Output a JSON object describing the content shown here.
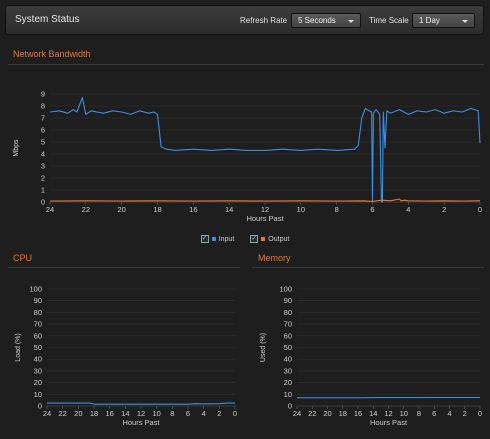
{
  "header": {
    "title": "System Status",
    "refresh_label": "Refresh Rate",
    "refresh_value": "5 Seconds",
    "timescale_label": "Time Scale",
    "timescale_value": "1 Day"
  },
  "colors": {
    "accent": "#e8772e",
    "input": "#3a8ee6",
    "output": "#e8772e",
    "cpu": "#3a8ee6",
    "memory": "#3a8ee6"
  },
  "legend": {
    "input_label": "Input",
    "output_label": "Output",
    "input_checked": true,
    "output_checked": true
  },
  "chart_data": [
    {
      "id": "bandwidth",
      "type": "line",
      "title": "Network Bandwidth",
      "xlabel": "Hours Past",
      "ylabel": "Mbps",
      "xlim": [
        24,
        0
      ],
      "ylim": [
        0,
        9
      ],
      "xticks": [
        24,
        22,
        20,
        18,
        16,
        14,
        12,
        10,
        8,
        6,
        4,
        2,
        0
      ],
      "yticks": [
        0,
        1,
        2,
        3,
        4,
        5,
        6,
        7,
        8,
        9
      ],
      "grid": true,
      "series": [
        {
          "name": "Input",
          "x": [
            24,
            23.5,
            23,
            22.7,
            22.5,
            22.2,
            22,
            21.7,
            21.4,
            21,
            20.5,
            20,
            19.5,
            19,
            18.5,
            18.2,
            18.0,
            17.8,
            17.5,
            17,
            16,
            15,
            14,
            13,
            12,
            11,
            10,
            9,
            8,
            7,
            6.8,
            6.6,
            6.4,
            6.2,
            6.05,
            6.0,
            5.95,
            5.8,
            5.7,
            5.6,
            5.5,
            5.45,
            5.4,
            5.3,
            5.2,
            5.0,
            4.5,
            4.0,
            3.5,
            3.0,
            2.5,
            2.0,
            1.5,
            1.0,
            0.5,
            0.1,
            0
          ],
          "y": [
            7.5,
            7.6,
            7.4,
            7.7,
            7.5,
            8.7,
            7.3,
            7.6,
            7.5,
            7.4,
            7.6,
            7.5,
            7.3,
            7.6,
            7.4,
            7.5,
            7.3,
            4.6,
            4.4,
            4.3,
            4.4,
            4.3,
            4.4,
            4.3,
            4.3,
            4.4,
            4.3,
            4.4,
            4.3,
            4.4,
            4.7,
            7.0,
            7.8,
            7.6,
            7.5,
            0,
            7.4,
            7.7,
            7.5,
            7.3,
            0,
            0,
            7.5,
            4.5,
            7.6,
            7.4,
            7.7,
            7.3,
            7.6,
            7.5,
            7.7,
            7.4,
            7.6,
            7.5,
            7.8,
            7.6,
            4.9
          ]
        },
        {
          "name": "Output",
          "x": [
            24,
            22,
            20,
            18,
            16,
            14,
            12,
            10,
            8,
            6.5,
            6,
            5.5,
            5,
            4.5,
            4.4,
            4.2,
            4,
            3,
            2,
            1,
            0
          ],
          "y": [
            0.08,
            0.1,
            0.08,
            0.1,
            0.08,
            0.1,
            0.08,
            0.1,
            0.08,
            0.1,
            0.05,
            0.15,
            0.1,
            0.25,
            0.1,
            0.15,
            0.1,
            0.08,
            0.1,
            0.08,
            0.1
          ]
        }
      ]
    },
    {
      "id": "cpu",
      "type": "line",
      "title": "CPU",
      "xlabel": "Hours Past",
      "ylabel": "Load (%)",
      "xlim": [
        24,
        0
      ],
      "ylim": [
        0,
        100
      ],
      "xticks": [
        24,
        22,
        20,
        18,
        16,
        14,
        12,
        10,
        8,
        6,
        4,
        2,
        0
      ],
      "yticks": [
        0,
        10,
        20,
        30,
        40,
        50,
        60,
        70,
        80,
        90,
        100
      ],
      "grid": true,
      "series": [
        {
          "name": "Load",
          "x": [
            24,
            22,
            20,
            18.5,
            18,
            16,
            14,
            12,
            10,
            8,
            6,
            5,
            4,
            2,
            1,
            0
          ],
          "y": [
            2.5,
            2.5,
            2.5,
            2.5,
            1.5,
            1.5,
            1.5,
            1.5,
            1.5,
            1.5,
            1.5,
            2.0,
            1.8,
            2.0,
            2.5,
            2.5
          ]
        }
      ]
    },
    {
      "id": "memory",
      "type": "line",
      "title": "Memory",
      "xlabel": "Hours Past",
      "ylabel": "Used (%)",
      "xlim": [
        24,
        0
      ],
      "ylim": [
        0,
        100
      ],
      "xticks": [
        24,
        22,
        20,
        18,
        16,
        14,
        12,
        10,
        8,
        6,
        4,
        2,
        0
      ],
      "yticks": [
        0,
        10,
        20,
        30,
        40,
        50,
        60,
        70,
        80,
        90,
        100
      ],
      "grid": true,
      "series": [
        {
          "name": "Used",
          "x": [
            24,
            22,
            20,
            18,
            16,
            14,
            12,
            10,
            8,
            6,
            4,
            2,
            0
          ],
          "y": [
            7.0,
            7.0,
            7.0,
            7.0,
            7.0,
            7.2,
            7.2,
            7.2,
            7.2,
            7.3,
            7.3,
            7.3,
            7.3
          ]
        }
      ]
    }
  ]
}
